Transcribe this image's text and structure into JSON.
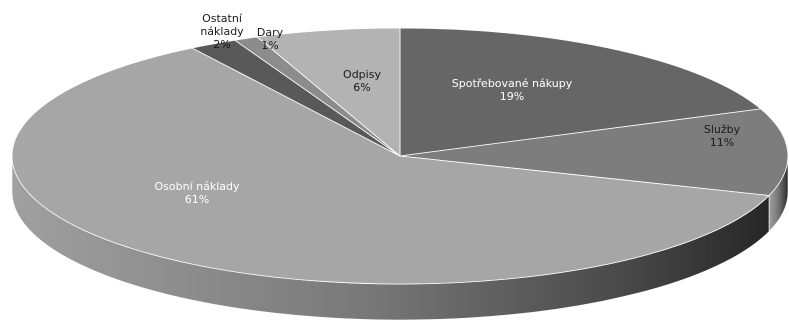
{
  "chart_data": {
    "type": "pie",
    "style": "3d",
    "title": "",
    "slices": [
      {
        "label": "Spotřebované nákupy",
        "value": 19,
        "value_label": "19%",
        "color": "#666666",
        "label_color": "#ffffff"
      },
      {
        "label": "Služby",
        "value": 11,
        "value_label": "11%",
        "color": "#7d7d7d",
        "label_color": "#1a1a1a"
      },
      {
        "label": "Osobní náklady",
        "value": 61,
        "value_label": "61%",
        "color": "#a6a6a6",
        "label_color": "#ffffff"
      },
      {
        "label": "Ostatní\nnáklady",
        "value": 2,
        "value_label": "2%",
        "color": "#595959",
        "label_color": "#1a1a1a"
      },
      {
        "label": "Dary",
        "value": 1,
        "value_label": "1%",
        "color": "#8c8c8c",
        "label_color": "#1a1a1a"
      },
      {
        "label": "Odpisy",
        "value": 6,
        "value_label": "6%",
        "color": "#b3b3b3",
        "label_color": "#1a1a1a"
      }
    ]
  }
}
